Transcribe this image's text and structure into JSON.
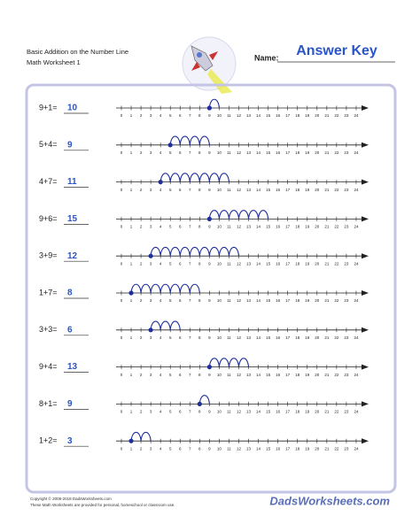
{
  "header": {
    "title": "Basic Addition on the Number Line",
    "subtitle": "Math Worksheet 1",
    "name_label": "Name:",
    "answer_key": "Answer Key"
  },
  "number_line_labels": [
    "0",
    "1",
    "2",
    "3",
    "4",
    "5",
    "6",
    "7",
    "8",
    "9",
    "10",
    "11",
    "12",
    "13",
    "14",
    "15",
    "16",
    "17",
    "18",
    "19",
    "20",
    "21",
    "22",
    "23",
    "24"
  ],
  "problems": [
    {
      "expression": "9+1=",
      "answer": "10",
      "start": 9,
      "hops": 1
    },
    {
      "expression": "5+4=",
      "answer": "9",
      "start": 5,
      "hops": 4
    },
    {
      "expression": "4+7=",
      "answer": "11",
      "start": 4,
      "hops": 7
    },
    {
      "expression": "9+6=",
      "answer": "15",
      "start": 9,
      "hops": 6
    },
    {
      "expression": "3+9=",
      "answer": "12",
      "start": 3,
      "hops": 9
    },
    {
      "expression": "1+7=",
      "answer": "8",
      "start": 1,
      "hops": 7
    },
    {
      "expression": "3+3=",
      "answer": "6",
      "start": 3,
      "hops": 3
    },
    {
      "expression": "9+4=",
      "answer": "13",
      "start": 9,
      "hops": 4
    },
    {
      "expression": "8+1=",
      "answer": "9",
      "start": 8,
      "hops": 1
    },
    {
      "expression": "1+2=",
      "answer": "3",
      "start": 1,
      "hops": 2
    }
  ],
  "footer": {
    "copyright": "Copyright © 2008-2018 DadsWorksheets.com",
    "note": "These Math Worksheets are provided for personal, homeschool or classroom use.",
    "logo": "DadsWorksheets.com"
  }
}
